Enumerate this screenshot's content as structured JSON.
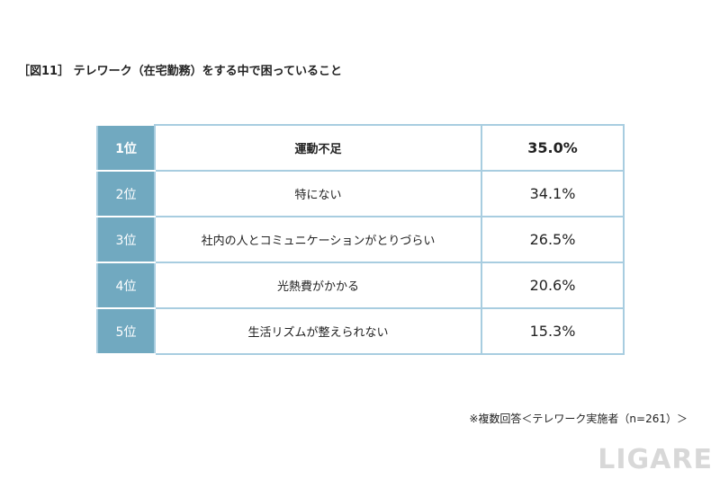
{
  "header": {
    "title": "［図11］ テレワーク（在宅勤務）をする中で困っていること"
  },
  "table": {
    "rows": [
      [
        "1位",
        "運動不足",
        "35.0%"
      ],
      [
        "2位",
        "特にない",
        "34.1%"
      ],
      [
        "3位",
        "社内の人とコミュニケーションがとりづらい",
        "26.5%"
      ],
      [
        "4位",
        "光熱費がかかる",
        "20.6%"
      ],
      [
        "5位",
        "生活リズムが整えられない",
        "15.3%"
      ]
    ]
  },
  "note": "※複数回答＜テレワーク実施者（n=261）＞",
  "watermark": "LIGARE"
}
